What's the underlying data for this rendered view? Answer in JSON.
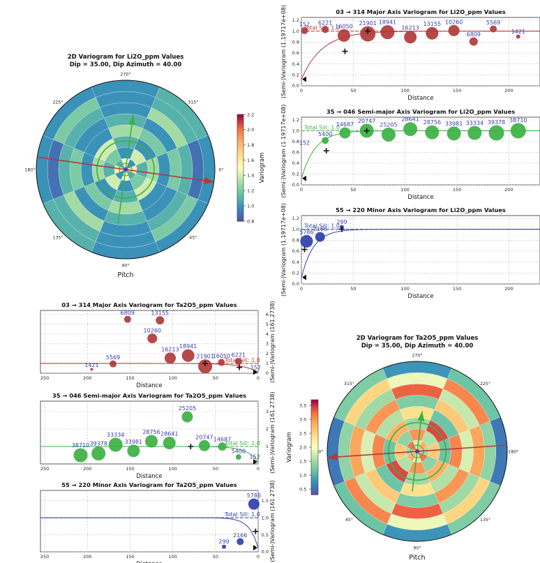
{
  "colors": {
    "major": "#b03a3a",
    "semi": "#3cb043",
    "minor": "#2f3fb0",
    "label": "#3a3aa8",
    "sill_major": "#c0392b",
    "sill_semi": "#3cb043",
    "sill_minor": "#2f3fb0"
  },
  "chart_data": [
    {
      "id": "li_polar",
      "type": "heatmap",
      "title": "2D Variogram for Li2O_ppm Values",
      "subtitle": "Dip = 35.00, Dip Azimuth = 40.00",
      "xlabel": "Pitch",
      "angle_labels": [
        "0°",
        "45°",
        "90°",
        "135°",
        "180°",
        "225°",
        "270°",
        "315°"
      ],
      "colorbar": {
        "label": "Variogram",
        "ticks": [
          0.8,
          1.0,
          1.2,
          1.4,
          1.6,
          1.8,
          2.0,
          2.2
        ],
        "range": [
          0.8,
          2.2
        ]
      },
      "rings": [
        [
          1.6,
          1.0,
          1.5,
          1.1,
          1.6,
          1.0,
          1.5,
          1.1
        ],
        [
          1.1,
          1.4,
          1.0,
          1.2,
          1.1,
          1.4,
          1.0,
          1.2
        ],
        [
          1.3,
          1.0,
          1.1,
          1.4,
          1.3,
          1.0,
          1.1,
          1.4
        ],
        [
          1.0,
          1.2,
          1.3,
          1.0,
          1.0,
          1.2,
          1.3,
          1.0
        ],
        [
          1.2,
          1.0,
          1.1,
          1.0,
          1.2,
          1.0,
          1.1,
          1.0
        ],
        [
          1.1,
          1.3,
          1.0,
          1.1,
          1.1,
          1.3,
          1.0,
          1.1
        ],
        [
          0.9,
          1.1,
          1.0,
          1.2,
          0.9,
          1.1,
          1.0,
          1.2
        ],
        [
          1.0,
          1.1,
          1.0,
          1.0,
          1.0,
          1.1,
          1.0,
          1.0
        ]
      ]
    },
    {
      "id": "li_major",
      "type": "scatter",
      "title": "03 → 314 Major Axis Variogram for Li2O_ppm Values",
      "xlabel": "Distance",
      "ylabel": "(Semi-)Variogram (1.19717e+08)",
      "xlim": [
        0,
        230
      ],
      "ylim": [
        0,
        1.25
      ],
      "xticks": [
        0,
        50,
        100,
        150,
        200,
        250
      ],
      "yticks": [
        0.0,
        0.2,
        0.4,
        0.6,
        0.8,
        1.0,
        1.2
      ],
      "sill_label": "Total Sill: 1.0",
      "points": [
        {
          "x": 3,
          "y": 1.01,
          "n": "152",
          "size": 5
        },
        {
          "x": 23,
          "y": 1.03,
          "n": "6221",
          "size": 5
        },
        {
          "x": 41,
          "y": 0.92,
          "n": "16050",
          "size": 9
        },
        {
          "x": 64,
          "y": 0.95,
          "n": "21901",
          "size": 11
        },
        {
          "x": 83,
          "y": 0.98,
          "n": "18941",
          "size": 10
        },
        {
          "x": 105,
          "y": 0.89,
          "n": "16213",
          "size": 9
        },
        {
          "x": 126,
          "y": 0.96,
          "n": "13155",
          "size": 9
        },
        {
          "x": 147,
          "y": 1.01,
          "n": "10260",
          "size": 8
        },
        {
          "x": 166,
          "y": 0.81,
          "n": "6809",
          "size": 6
        },
        {
          "x": 185,
          "y": 1.04,
          "n": "5569",
          "size": 5
        },
        {
          "x": 209,
          "y": 0.9,
          "n": "1421",
          "size": 3
        }
      ],
      "plus_points": [
        {
          "x": 42,
          "y": 0.63
        },
        {
          "x": 64,
          "y": 1.0
        }
      ],
      "model": "exp",
      "range": 60
    },
    {
      "id": "li_semi",
      "type": "scatter",
      "title": "35 → 046 Semi-major Axis Variogram for Li2O_ppm Values",
      "xlabel": "Distance",
      "ylabel": "(Semi-)Variogram (1.19717e+08)",
      "xlim": [
        0,
        230
      ],
      "ylim": [
        0,
        1.25
      ],
      "xticks": [
        0,
        50,
        100,
        150,
        200,
        250
      ],
      "yticks": [
        0.0,
        0.2,
        0.4,
        0.6,
        0.8,
        1.0,
        1.2
      ],
      "sill_label": "Total Sill: 1.0",
      "points": [
        {
          "x": 3,
          "y": 0.72,
          "n": "152",
          "size": 0
        },
        {
          "x": 23,
          "y": 0.82,
          "n": "5400",
          "size": 5
        },
        {
          "x": 42,
          "y": 0.96,
          "n": "14687",
          "size": 8
        },
        {
          "x": 63,
          "y": 1.0,
          "n": "20747",
          "size": 10
        },
        {
          "x": 84,
          "y": 0.93,
          "n": "25205",
          "size": 10
        },
        {
          "x": 105,
          "y": 1.03,
          "n": "28641",
          "size": 10
        },
        {
          "x": 126,
          "y": 0.97,
          "n": "28756",
          "size": 10
        },
        {
          "x": 147,
          "y": 0.95,
          "n": "33981",
          "size": 10
        },
        {
          "x": 167,
          "y": 0.96,
          "n": "33334",
          "size": 10
        },
        {
          "x": 188,
          "y": 0.96,
          "n": "39378",
          "size": 11
        },
        {
          "x": 209,
          "y": 1.0,
          "n": "38710",
          "size": 11
        }
      ],
      "plus_points": [
        {
          "x": 24,
          "y": 0.63
        },
        {
          "x": 63,
          "y": 1.0
        }
      ],
      "model": "exp",
      "range": 40
    },
    {
      "id": "li_minor",
      "type": "scatter",
      "title": "55 → 220 Minor Axis Variogram for Li2O_ppm Values",
      "xlabel": "Distance",
      "ylabel": "(Semi-)Variogram (1.19717e+08)",
      "xlim": [
        0,
        230
      ],
      "ylim": [
        0,
        1.25
      ],
      "xticks": [
        0,
        50,
        100,
        150,
        200,
        250
      ],
      "yticks": [
        0.0,
        0.2,
        0.4,
        0.6,
        0.8,
        1.0,
        1.2
      ],
      "sill_label": "Total Sill: 1.0",
      "points": [
        {
          "x": 5,
          "y": 0.78,
          "n": "5786",
          "size": 9
        },
        {
          "x": 18,
          "y": 0.86,
          "n": "2166",
          "size": 7
        },
        {
          "x": 39,
          "y": 1.04,
          "n": "299",
          "size": 3
        }
      ],
      "plus_points": [
        {
          "x": 3,
          "y": 0.63
        },
        {
          "x": 39,
          "y": 1.0
        }
      ],
      "model": "exp",
      "range": 35
    },
    {
      "id": "ta_major",
      "type": "scatter",
      "title": "03 → 314 Major Axis Variogram for Ta2O5_ppm Values",
      "xlabel": "Distance",
      "ylabel": "(Semi-)Variogram (161.2738)",
      "xlim": [
        0,
        255
      ],
      "ylim": [
        0,
        6.4
      ],
      "xticks": [
        0,
        50,
        100,
        150,
        200,
        250
      ],
      "yticks": [
        0,
        1,
        2,
        3,
        4,
        5,
        6
      ],
      "sill_label": "Total Sill: 1.0",
      "points": [
        {
          "x": 3,
          "y": 0.3,
          "n": "152",
          "size": 0
        },
        {
          "x": 23,
          "y": 1.2,
          "n": "6221",
          "size": 5
        },
        {
          "x": 43,
          "y": 1.1,
          "n": "16050",
          "size": 5
        },
        {
          "x": 62,
          "y": 0.7,
          "n": "21901",
          "size": 10
        },
        {
          "x": 82,
          "y": 1.8,
          "n": "18941",
          "size": 9
        },
        {
          "x": 103,
          "y": 1.55,
          "n": "16213",
          "size": 8
        },
        {
          "x": 124,
          "y": 3.55,
          "n": "10260",
          "size": 7
        },
        {
          "x": 115,
          "y": 5.4,
          "n": "13155",
          "size": 6
        },
        {
          "x": 153,
          "y": 5.5,
          "n": "6809",
          "size": 5
        },
        {
          "x": 170,
          "y": 0.95,
          "n": "5569",
          "size": 5
        },
        {
          "x": 195,
          "y": 0.4,
          "n": "1421",
          "size": 2
        }
      ],
      "plus_points": [
        {
          "x": 22,
          "y": 0.6
        },
        {
          "x": 62,
          "y": 1.0
        }
      ],
      "model": "exp",
      "range": 55
    },
    {
      "id": "ta_semi",
      "type": "scatter",
      "title": "35 → 046 Semi-major Axis Variogram for Ta2O5_ppm Values",
      "xlabel": "Distance",
      "ylabel": "(Semi-)Variogram (161.2738)",
      "xlim": [
        0,
        255
      ],
      "ylim": [
        0,
        3.6
      ],
      "xticks": [
        0,
        50,
        100,
        150,
        200,
        250
      ],
      "yticks": [
        1,
        2,
        3
      ],
      "sill_label": "Total Sill: 1.0",
      "points": [
        {
          "x": 4,
          "y": 0.25,
          "n": "152",
          "size": 0
        },
        {
          "x": 23,
          "y": 0.4,
          "n": "5400",
          "size": 4
        },
        {
          "x": 42,
          "y": 1.0,
          "n": "14687",
          "size": 6
        },
        {
          "x": 63,
          "y": 1.05,
          "n": "20747",
          "size": 8
        },
        {
          "x": 83,
          "y": 2.7,
          "n": "25205",
          "size": 8
        },
        {
          "x": 104,
          "y": 1.2,
          "n": "28641",
          "size": 9
        },
        {
          "x": 125,
          "y": 1.3,
          "n": "28756",
          "size": 9
        },
        {
          "x": 146,
          "y": 0.75,
          "n": "33981",
          "size": 9
        },
        {
          "x": 167,
          "y": 1.1,
          "n": "33334",
          "size": 10
        },
        {
          "x": 187,
          "y": 0.6,
          "n": "39378",
          "size": 10
        },
        {
          "x": 208,
          "y": 0.5,
          "n": "38710",
          "size": 10
        }
      ],
      "plus_points": [
        {
          "x": 79,
          "y": 1.0
        }
      ],
      "model": "exp",
      "range": 40
    },
    {
      "id": "ta_minor",
      "type": "scatter",
      "title": "55 → 220 Minor Axis Variogram for Ta2O5_ppm Values",
      "xlabel": "Distance",
      "ylabel": "(Semi-)Variogram (161.2738)",
      "xlim": [
        0,
        255
      ],
      "ylim": [
        0,
        1.8
      ],
      "xticks": [
        0,
        50,
        100,
        150,
        200,
        250
      ],
      "yticks": [
        0.0,
        0.5,
        1.0,
        1.5
      ],
      "sill_label": "Total Sill: 1.0",
      "points": [
        {
          "x": 5,
          "y": 1.4,
          "n": "5786",
          "size": 8
        },
        {
          "x": 21,
          "y": 0.3,
          "n": "2166",
          "size": 5
        },
        {
          "x": 40,
          "y": 0.15,
          "n": "299",
          "size": 3
        }
      ],
      "plus_points": [
        {
          "x": 3,
          "y": 0.6
        }
      ],
      "model": "exp",
      "range": 30
    },
    {
      "id": "ta_polar",
      "type": "heatmap",
      "title": "2D Variogram for Ta2O5_ppm Values",
      "subtitle": "Dip = 35.00, Dip Azimuth = 40.00",
      "xlabel": "Pitch",
      "angle_labels": [
        "0°",
        "45°",
        "90°",
        "135°",
        "180°",
        "225°",
        "270°",
        "315°"
      ],
      "colorbar": {
        "label": "Variogram",
        "ticks": [
          0.5,
          1.0,
          1.5,
          2.0,
          2.5,
          3.0,
          3.5
        ],
        "range": [
          0.3,
          3.7
        ]
      },
      "rings": [
        [
          1.5,
          3.2,
          1.8,
          2.8,
          1.5,
          3.2,
          1.8,
          2.8
        ],
        [
          2.6,
          1.4,
          3.0,
          1.6,
          2.6,
          1.4,
          3.0,
          1.6
        ],
        [
          1.2,
          2.8,
          1.5,
          3.4,
          1.2,
          2.8,
          1.5,
          3.4
        ],
        [
          3.1,
          1.6,
          2.4,
          1.2,
          3.1,
          1.6,
          2.4,
          1.2
        ],
        [
          1.8,
          3.0,
          1.3,
          2.6,
          1.8,
          3.0,
          1.3,
          2.6
        ],
        [
          2.9,
          1.5,
          3.3,
          1.7,
          2.9,
          1.5,
          3.3,
          1.7
        ],
        [
          1.4,
          2.5,
          1.9,
          3.1,
          1.4,
          2.5,
          1.9,
          3.1
        ],
        [
          0.6,
          1.3,
          0.8,
          1.2,
          0.6,
          1.3,
          0.8,
          1.2
        ]
      ]
    }
  ]
}
